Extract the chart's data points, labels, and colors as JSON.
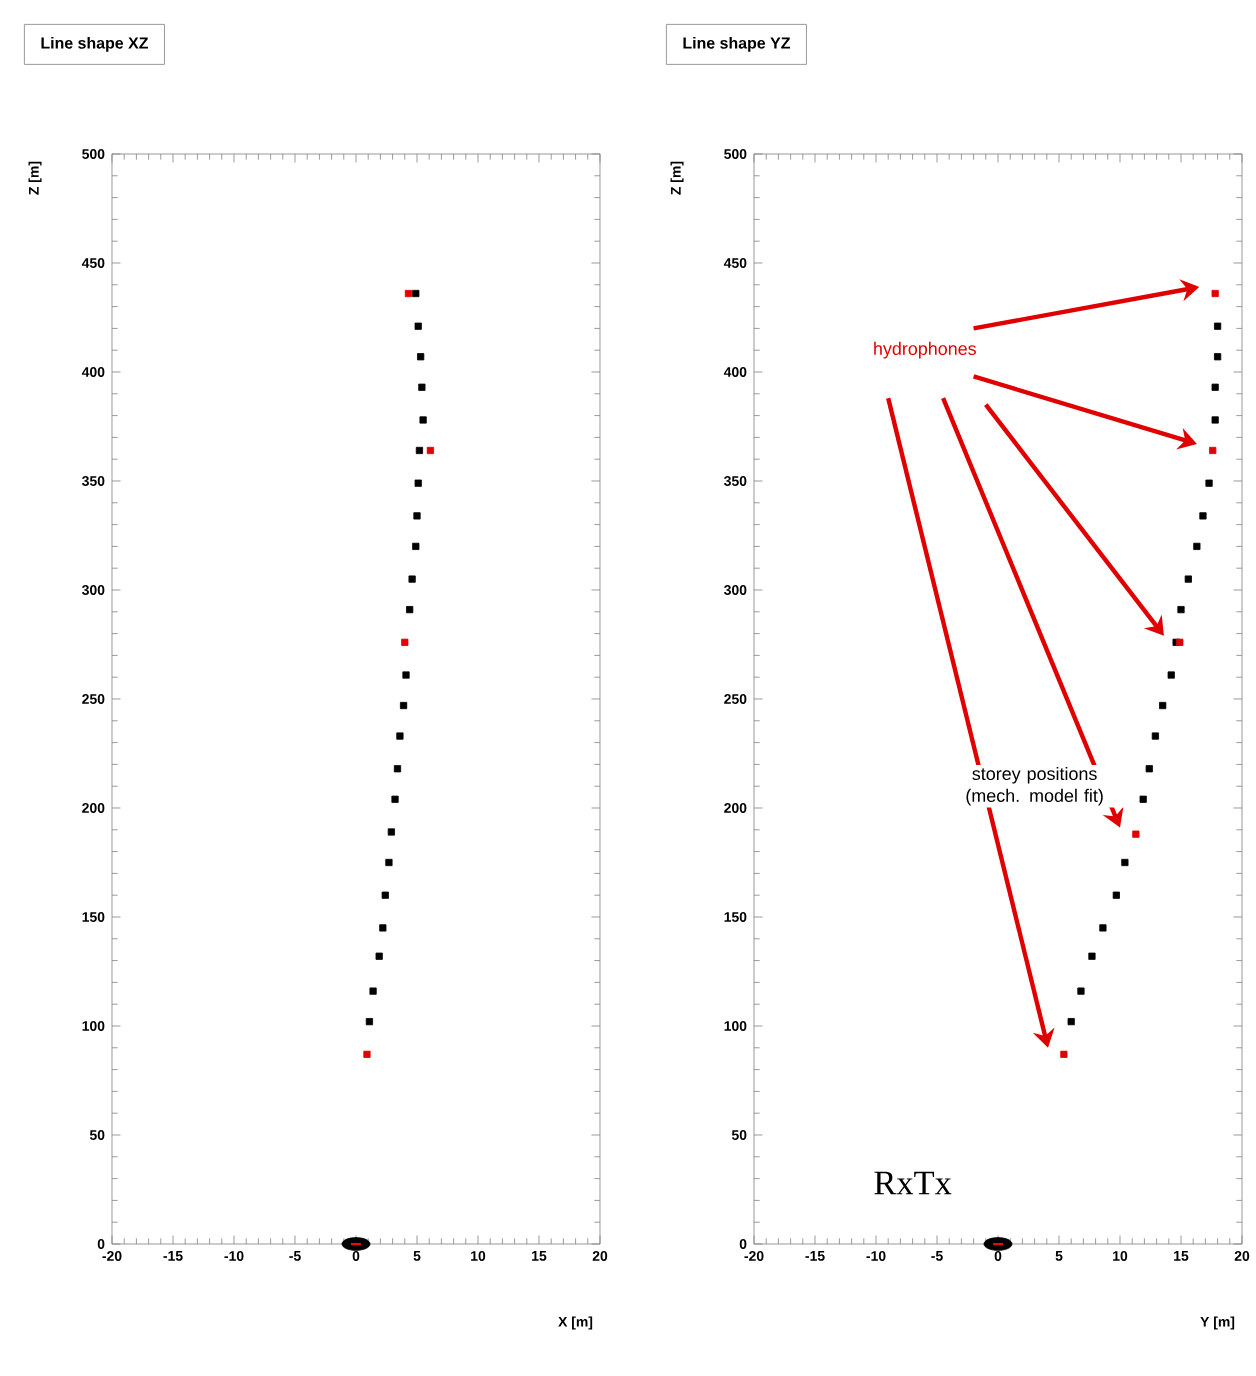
{
  "chart_data": [
    {
      "type": "scatter",
      "title": "Line shape XZ",
      "xlabel": "X [m]",
      "ylabel": "Z [m]",
      "xlim": [
        -20,
        20
      ],
      "ylim": [
        0,
        500
      ],
      "xticks": [
        -20,
        -15,
        -10,
        -5,
        0,
        5,
        10,
        15,
        20
      ],
      "yticks": [
        0,
        50,
        100,
        150,
        200,
        250,
        300,
        350,
        400,
        450,
        500
      ],
      "marker": "square",
      "series": [
        {
          "color": "#000000",
          "x": [
            4.9,
            5.1,
            5.3,
            5.4,
            5.5,
            5.2,
            5.1,
            5.0,
            4.9,
            4.6,
            4.4,
            null,
            4.1,
            3.9,
            3.6,
            3.4,
            3.2,
            2.9,
            2.7,
            2.4,
            2.2,
            1.9,
            1.4,
            1.1,
            null
          ],
          "values": [
            436,
            421,
            407,
            393,
            378,
            364,
            349,
            334,
            320,
            305,
            291,
            null,
            261,
            247,
            233,
            218,
            204,
            189,
            175,
            160,
            145,
            132,
            116,
            102,
            null
          ]
        },
        {
          "color": "#e00000",
          "x": [
            4.3,
            6.1,
            4.0,
            0.9
          ],
          "values": [
            436,
            364,
            276,
            87
          ]
        },
        {
          "color": "#000000",
          "marker": "circle",
          "x": [
            0
          ],
          "values": [
            0
          ]
        }
      ]
    },
    {
      "type": "scatter",
      "title": "Line shape YZ",
      "xlabel": "Y [m]",
      "ylabel": "Z [m]",
      "xlim": [
        -20,
        20
      ],
      "ylim": [
        0,
        500
      ],
      "xticks": [
        -20,
        -15,
        -10,
        -5,
        0,
        5,
        10,
        15,
        20
      ],
      "yticks": [
        0,
        50,
        100,
        150,
        200,
        250,
        300,
        350,
        400,
        450,
        500
      ],
      "marker": "square",
      "series": [
        {
          "name": "storey positions (mech. model fit)",
          "color": "#000000",
          "x": [
            null,
            18.0,
            18.0,
            17.8,
            17.8,
            null,
            17.3,
            16.8,
            16.3,
            15.6,
            15.0,
            14.6,
            14.2,
            13.5,
            12.9,
            12.4,
            11.9,
            null,
            10.4,
            9.7,
            8.6,
            7.7,
            6.8,
            6.0,
            null
          ],
          "values": [
            null,
            421,
            407,
            393,
            378,
            null,
            349,
            334,
            320,
            305,
            291,
            276,
            261,
            247,
            233,
            218,
            204,
            null,
            175,
            160,
            145,
            132,
            116,
            102,
            null
          ]
        },
        {
          "name": "hydrophones",
          "color": "#e00000",
          "x": [
            17.8,
            17.6,
            14.9,
            11.3,
            5.4
          ],
          "values": [
            436,
            364,
            276,
            188,
            87
          ]
        },
        {
          "name": "RxTx",
          "color": "#000000",
          "marker": "circle",
          "x": [
            0
          ],
          "values": [
            0
          ]
        }
      ]
    }
  ]
}
